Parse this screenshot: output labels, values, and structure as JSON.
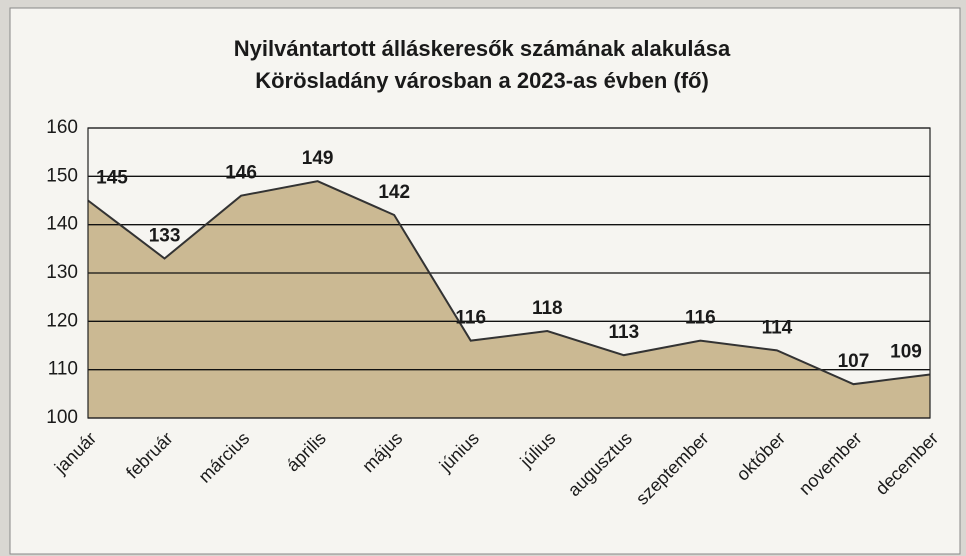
{
  "chart_data": {
    "type": "area",
    "title": [
      "Nyilvántartott álláskeresők számának alakulása",
      "Körösladány városban a 2023-as évben (fő)"
    ],
    "categories": [
      "január",
      "február",
      "március",
      "április",
      "május",
      "június",
      "július",
      "augusztus",
      "szeptember",
      "október",
      "november",
      "december"
    ],
    "values": [
      145,
      133,
      146,
      149,
      142,
      116,
      118,
      113,
      116,
      114,
      107,
      109
    ],
    "color": "#cbb993",
    "line_color": "#333333",
    "ylim": [
      100,
      160
    ],
    "yticks": [
      100,
      110,
      120,
      130,
      140,
      150,
      160
    ],
    "grid": true
  }
}
